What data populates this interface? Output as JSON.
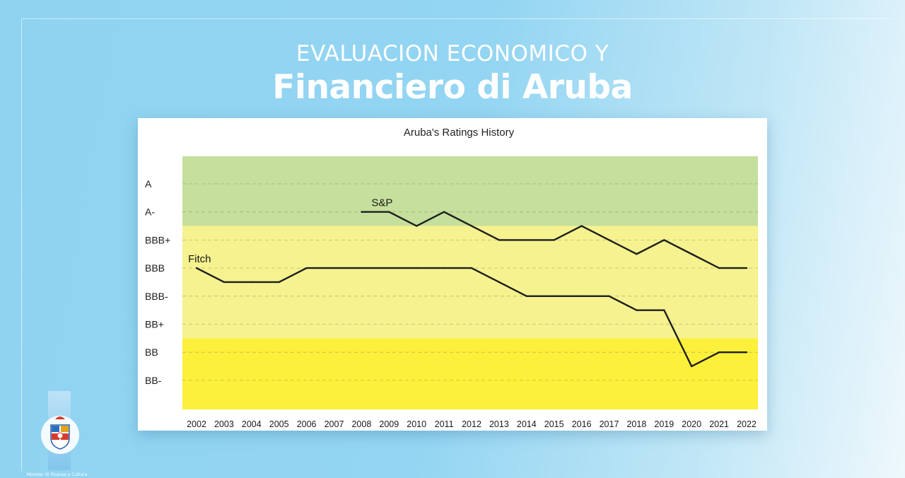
{
  "header": {
    "line1": "EVALUACION ECONOMICO Y",
    "line2": "Financiero di Aruba"
  },
  "footer": {
    "ministry": "Minister di Finansa y Cultura"
  },
  "colors": {
    "zone_green": "#c5df9c",
    "zone_light_yellow": "#f6f28f",
    "zone_bright_yellow": "#fdf03a",
    "line": "#1e1e1e"
  },
  "chart_data": {
    "type": "line",
    "title": "Aruba's Ratings History",
    "xlabel": "",
    "ylabel": "",
    "categories": [
      "2002",
      "2003",
      "2004",
      "2005",
      "2006",
      "2007",
      "2008",
      "2009",
      "2010",
      "2011",
      "2012",
      "2013",
      "2014",
      "2015",
      "2016",
      "2017",
      "2018",
      "2019",
      "2020",
      "2021",
      "2022"
    ],
    "rating_scale": [
      "A",
      "A-",
      "BBB+",
      "BBB",
      "BBB-",
      "BB+",
      "BB",
      "BB-"
    ],
    "zones": [
      {
        "from": "A",
        "to": "A-",
        "color": "#c5df9c"
      },
      {
        "from": "BBB+",
        "to": "BB+",
        "color": "#f6f28f"
      },
      {
        "from": "BB",
        "to": "BB-",
        "color": "#fdf03a"
      }
    ],
    "series": [
      {
        "name": "S&P",
        "values": [
          null,
          null,
          null,
          null,
          null,
          null,
          "A-",
          "A-",
          "A-/BBB+",
          "A-",
          "A-/BBB+",
          "BBB+",
          "BBB+",
          "BBB+",
          "A-/BBB+",
          "BBB+",
          "BBB+/BBB",
          "BBB+",
          "BBB+/BBB",
          "BBB",
          "BBB"
        ]
      },
      {
        "name": "Fitch",
        "values": [
          "BBB",
          "BBB/BBB-",
          "BBB/BBB-",
          "BBB/BBB-",
          "BBB",
          "BBB",
          "BBB",
          "BBB",
          "BBB",
          "BBB",
          "BBB",
          "BBB/BBB-",
          "BBB-",
          "BBB-",
          "BBB-",
          "BBB-",
          "BBB-/BB+",
          "BBB-/BB+",
          "BB/BB-",
          "BB",
          "BB"
        ]
      }
    ],
    "grid": true,
    "legend": "inline labels"
  }
}
